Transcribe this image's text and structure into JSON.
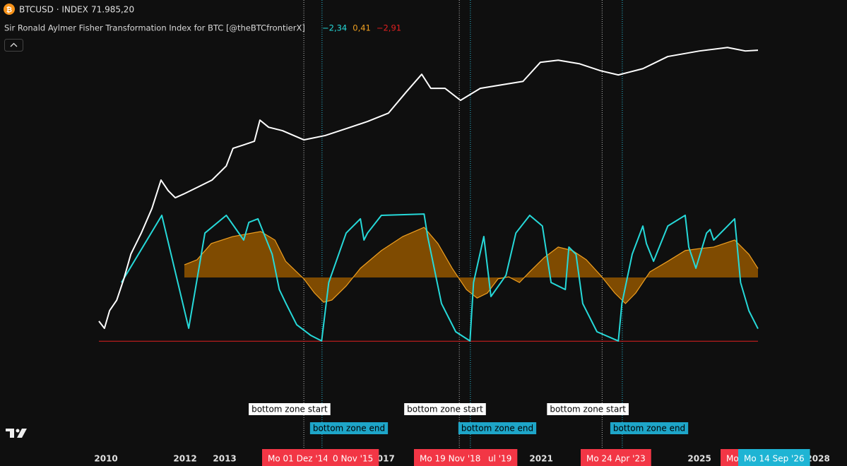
{
  "chart_data": {
    "type": "line",
    "title": "BTCUSD · INDEX",
    "last_price_label": "71.985,20",
    "indicator_title": "Sir Ronald Aylmer Fisher Transformation Index for BTC [@theBTCfrontierX]",
    "indicator_values": [
      {
        "label": "−2,34",
        "color": "#26d9d9"
      },
      {
        "label": "0,41",
        "color": "#f0a020"
      },
      {
        "label": "−2,91",
        "color": "#e02020"
      }
    ],
    "xlim": [
      2007.32,
      2028.73
    ],
    "xticks": [
      2010,
      2012,
      2013,
      2017,
      2021,
      2025,
      2028
    ],
    "ylim": [
      0.05,
      100000
    ],
    "log_y": true,
    "y2lim": [
      -3.5,
      3.5
    ],
    "threshold": {
      "value": -2.91,
      "color": "#e02020",
      "start": 2009.82,
      "end": 2026.48
    },
    "series": [
      {
        "name": "BTCUSD",
        "color": "#ffffff",
        "x": [
          2009.82,
          2009.96,
          2010.09,
          2010.27,
          2010.45,
          2010.63,
          2010.89,
          2011.16,
          2011.39,
          2011.57,
          2011.75,
          2011.96,
          2012.32,
          2012.68,
          2013.04,
          2013.21,
          2013.48,
          2013.75,
          2013.89,
          2014.11,
          2014.46,
          2015.0,
          2015.54,
          2016.07,
          2016.61,
          2017.14,
          2017.59,
          2017.98,
          2018.21,
          2018.57,
          2018.96,
          2019.46,
          2019.99,
          2020.54,
          2020.98,
          2021.43,
          2021.96,
          2022.5,
          2022.95,
          2023.57,
          2024.2,
          2025.0,
          2025.71,
          2026.16,
          2026.48
        ],
        "values": [
          0.072,
          0.05,
          0.123,
          0.21,
          0.62,
          2.22,
          6.4,
          22.5,
          96,
          56,
          39,
          47,
          67,
          96,
          197,
          484,
          578,
          693,
          2040,
          1420,
          1190,
          745,
          930,
          1320,
          1900,
          2920,
          8590,
          21100,
          10300,
          10300,
          5590,
          10300,
          12300,
          14700,
          38900,
          43300,
          36200,
          25300,
          20400,
          28100,
          52200,
          69300,
          82800,
          69300,
          71985.2
        ]
      },
      {
        "type": "line",
        "axis": "y2",
        "color": "#26d9d9",
        "x": [
          2010.39,
          2011.41,
          2012.09,
          2012.5,
          2013.04,
          2013.48,
          2013.61,
          2013.84,
          2014.2,
          2014.38,
          2014.55,
          2014.82,
          2015.18,
          2015.45,
          2015.63,
          2016.07,
          2016.43,
          2016.52,
          2016.61,
          2016.96,
          2018.04,
          2018.13,
          2018.48,
          2018.84,
          2019.2,
          2019.29,
          2019.55,
          2019.73,
          2020.11,
          2020.36,
          2020.71,
          2021.03,
          2021.25,
          2021.61,
          2021.7,
          2021.88,
          2022.05,
          2022.41,
          2022.95,
          2023.04,
          2023.3,
          2023.57,
          2023.66,
          2023.84,
          2024.2,
          2024.64,
          2024.73,
          2024.91,
          2025.18,
          2025.27,
          2025.36,
          2025.71,
          2025.89,
          2026.04,
          2026.25,
          2026.48
        ],
        "values": [
          -0.23,
          2.84,
          -2.32,
          2.03,
          2.84,
          1.71,
          2.52,
          2.68,
          1.06,
          -0.55,
          -1.19,
          -2.16,
          -2.65,
          -2.9,
          -0.23,
          2.03,
          2.68,
          1.71,
          2.03,
          2.84,
          2.9,
          1.87,
          -1.19,
          -2.48,
          -2.9,
          -0.23,
          1.87,
          -0.87,
          0.1,
          2.03,
          2.84,
          2.35,
          -0.23,
          -0.55,
          1.39,
          1.06,
          -1.19,
          -2.48,
          -2.9,
          -1.19,
          1.06,
          2.35,
          1.55,
          0.74,
          2.35,
          2.84,
          1.39,
          0.42,
          2.03,
          2.19,
          1.71,
          2.35,
          2.68,
          -0.23,
          -1.52,
          -2.34
        ]
      },
      {
        "type": "area",
        "axis": "y2",
        "color": "#f0a020",
        "fill": "#8c5200",
        "x": [
          2011.98,
          2012.3,
          2012.66,
          2013.2,
          2013.91,
          2014.27,
          2014.54,
          2015.0,
          2015.27,
          2015.5,
          2015.71,
          2016.07,
          2016.43,
          2016.96,
          2017.5,
          2018.04,
          2018.39,
          2018.75,
          2019.11,
          2019.38,
          2019.64,
          2019.91,
          2020.18,
          2020.45,
          2020.71,
          2021.07,
          2021.43,
          2021.79,
          2022.14,
          2022.5,
          2022.86,
          2023.13,
          2023.39,
          2023.75,
          2024.2,
          2024.64,
          2025.0,
          2025.36,
          2025.89,
          2026.25,
          2026.48
        ],
        "values": [
          0.58,
          0.81,
          1.55,
          1.87,
          2.1,
          1.71,
          0.74,
          -0.06,
          -0.71,
          -1.13,
          -1.03,
          -0.39,
          0.42,
          1.23,
          1.87,
          2.29,
          1.55,
          0.42,
          -0.55,
          -0.94,
          -0.71,
          -0.06,
          0.03,
          -0.23,
          0.26,
          0.9,
          1.39,
          1.23,
          0.81,
          0.1,
          -0.71,
          -1.19,
          -0.71,
          0.26,
          0.74,
          1.23,
          1.32,
          1.39,
          1.71,
          1.06,
          0.41
        ]
      }
    ],
    "zones": [
      {
        "start": 2015.0,
        "end": 2015.46,
        "start_label": "bottom zone start",
        "end_label": "bottom zone end"
      },
      {
        "start": 2018.93,
        "end": 2019.21,
        "start_label": "bottom zone start",
        "end_label": "bottom zone end"
      },
      {
        "start": 2022.54,
        "end": 2023.05,
        "start_label": "bottom zone start",
        "end_label": "bottom zone end"
      }
    ],
    "date_labels": [
      "Mo 01 Dez '14",
      "0 Nov '15",
      "Mo 19 Nov '18",
      "ul '19",
      "Mo 24 Apr '23",
      "Mo",
      "Mo 14 Sep '26"
    ]
  }
}
